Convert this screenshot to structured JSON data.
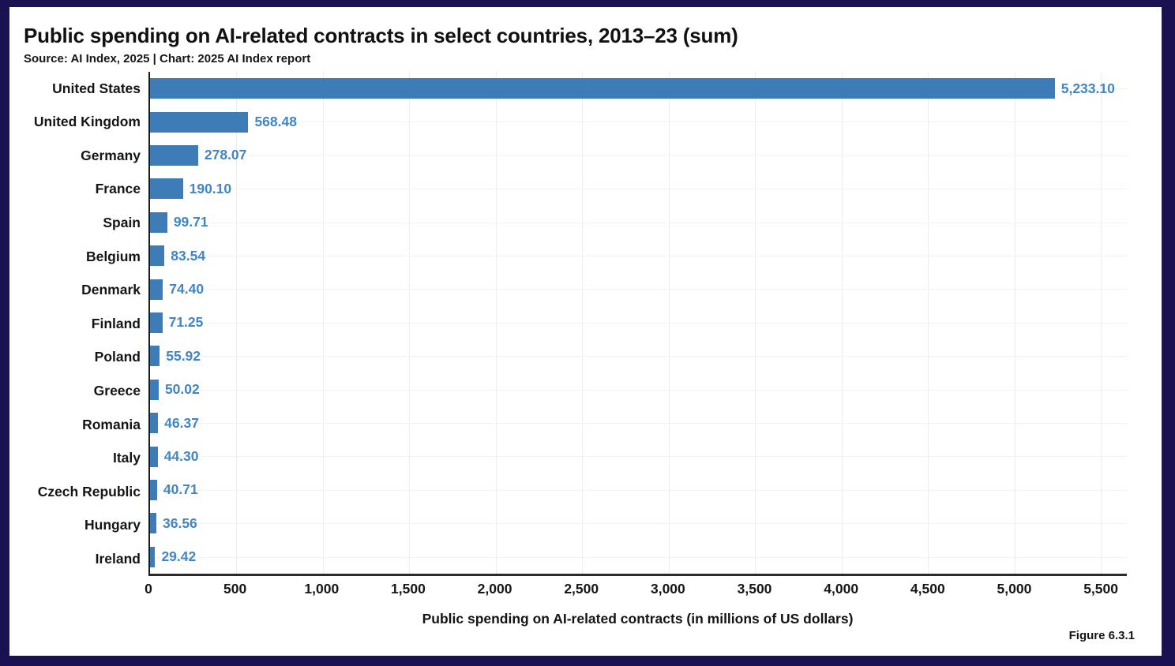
{
  "page": {
    "title": "Public spending on AI-related contracts in select countries, 2013–23 (sum)",
    "subtitle": "Source: AI Index, 2025 | Chart: 2025 AI Index report",
    "figure_label": "Figure 6.3.1"
  },
  "colors": {
    "frame": "#1A1153",
    "bar": "#3E7CB8",
    "value_label": "#4285C4",
    "axis_line": "#1c1c1c",
    "grid_line": "#ededed",
    "background": "#ffffff"
  },
  "chart_data": {
    "type": "bar",
    "orientation": "horizontal",
    "title": "Public spending on AI-related contracts in select countries, 2013–23 (sum)",
    "subtitle": "Source: AI Index, 2025 | Chart: 2025 AI Index report",
    "xlabel": "Public spending on AI-related contracts (in millions of US dollars)",
    "ylabel": "",
    "categories": [
      "United States",
      "United Kingdom",
      "Germany",
      "France",
      "Spain",
      "Belgium",
      "Denmark",
      "Finland",
      "Poland",
      "Greece",
      "Romania",
      "Italy",
      "Czech Republic",
      "Hungary",
      "Ireland"
    ],
    "values": [
      5233.1,
      568.48,
      278.07,
      190.1,
      99.71,
      83.54,
      74.4,
      71.25,
      55.92,
      50.02,
      46.37,
      44.3,
      40.71,
      36.56,
      29.42
    ],
    "value_labels": [
      "5,233.10",
      "568.48",
      "278.07",
      "190.10",
      "99.71",
      "83.54",
      "74.40",
      "71.25",
      "55.92",
      "50.02",
      "46.37",
      "44.30",
      "40.71",
      "36.56",
      "29.42"
    ],
    "xlim": [
      0,
      5650
    ],
    "xticks": [
      0,
      500,
      1000,
      1500,
      2000,
      2500,
      3000,
      3500,
      4000,
      4500,
      5000,
      5500
    ],
    "xtick_labels": [
      "0",
      "500",
      "1,000",
      "1,500",
      "2,000",
      "2,500",
      "3,000",
      "3,500",
      "4,000",
      "4,500",
      "5,000",
      "5,500"
    ],
    "grid": true,
    "legend": false
  }
}
